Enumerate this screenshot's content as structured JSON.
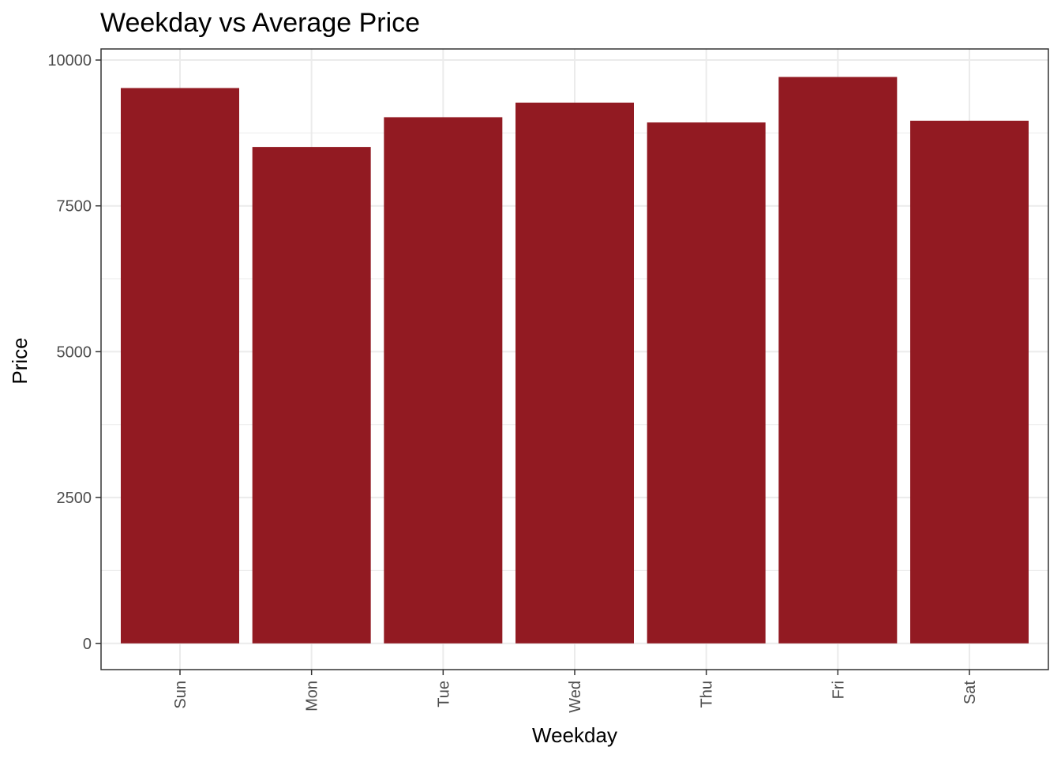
{
  "chart_data": {
    "type": "bar",
    "title": "Weekday vs Average Price",
    "xlabel": "Weekday",
    "ylabel": "Price",
    "categories": [
      "Sun",
      "Mon",
      "Tue",
      "Wed",
      "Thu",
      "Fri",
      "Sat"
    ],
    "values": [
      9520,
      8510,
      9020,
      9270,
      8930,
      9710,
      8960
    ],
    "ylim": [
      -450,
      10190
    ],
    "yticks": [
      0,
      2500,
      5000,
      7500,
      10000
    ],
    "ytick_labels": [
      "0",
      "2500",
      "5000",
      "7500",
      "10000"
    ],
    "grid": true,
    "bar_color": "#921a22",
    "grid_color": "#ebebeb",
    "panel_border_color": "#333333"
  }
}
